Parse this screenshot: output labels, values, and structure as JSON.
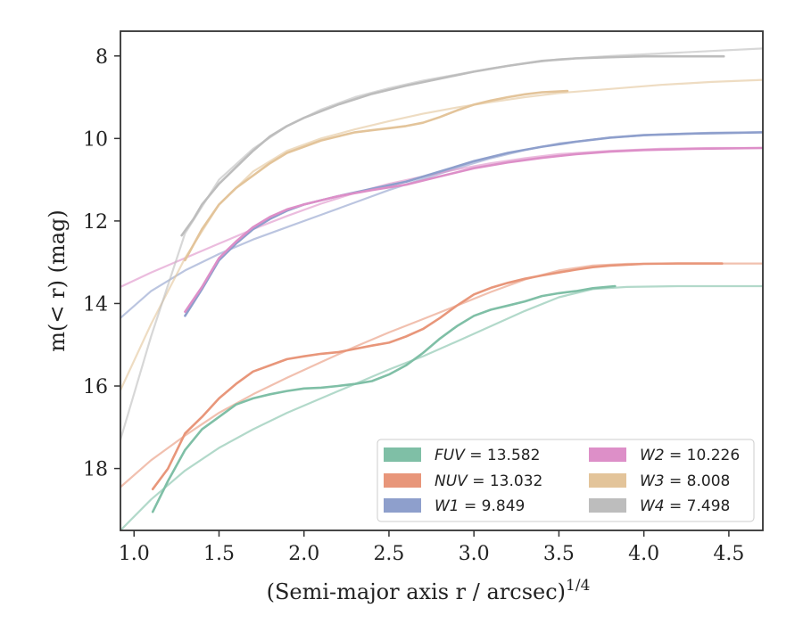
{
  "chart_data": {
    "type": "line",
    "xlabel": "(Semi-major axis r / arcsec)",
    "xlabel_sup": "1/4",
    "ylabel": "m(< r) (mag)",
    "xlim": [
      0.92,
      4.7
    ],
    "ylim": [
      19.5,
      7.4
    ],
    "y_inverted": true,
    "grid": false,
    "legend_placement": "lower-right",
    "x_ticks": [
      1.0,
      1.5,
      2.0,
      2.5,
      3.0,
      3.5,
      4.0,
      4.5
    ],
    "x_tick_labels": [
      "1.0",
      "1.5",
      "2.0",
      "2.5",
      "3.0",
      "3.5",
      "4.0",
      "4.5"
    ],
    "y_ticks": [
      8,
      10,
      12,
      14,
      16,
      18
    ],
    "y_tick_labels": [
      "8",
      "10",
      "12",
      "14",
      "16",
      "18"
    ],
    "series": [
      {
        "name": "FUV",
        "legend_label": "FUV = 13.582",
        "color": "#7fbfa6",
        "curve": [
          [
            1.11,
            19.05
          ],
          [
            1.2,
            18.3
          ],
          [
            1.3,
            17.55
          ],
          [
            1.4,
            17.05
          ],
          [
            1.5,
            16.75
          ],
          [
            1.6,
            16.45
          ],
          [
            1.7,
            16.3
          ],
          [
            1.8,
            16.2
          ],
          [
            1.9,
            16.12
          ],
          [
            2.0,
            16.06
          ],
          [
            2.1,
            16.04
          ],
          [
            2.2,
            16.0
          ],
          [
            2.3,
            15.95
          ],
          [
            2.4,
            15.88
          ],
          [
            2.5,
            15.72
          ],
          [
            2.6,
            15.5
          ],
          [
            2.7,
            15.2
          ],
          [
            2.8,
            14.85
          ],
          [
            2.9,
            14.55
          ],
          [
            3.0,
            14.3
          ],
          [
            3.1,
            14.15
          ],
          [
            3.2,
            14.05
          ],
          [
            3.3,
            13.95
          ],
          [
            3.4,
            13.82
          ],
          [
            3.5,
            13.75
          ],
          [
            3.6,
            13.7
          ],
          [
            3.7,
            13.63
          ],
          [
            3.83,
            13.58
          ]
        ],
        "fit": [
          [
            0.92,
            19.5
          ],
          [
            1.1,
            18.75
          ],
          [
            1.3,
            18.05
          ],
          [
            1.5,
            17.5
          ],
          [
            1.7,
            17.05
          ],
          [
            1.9,
            16.65
          ],
          [
            2.1,
            16.3
          ],
          [
            2.3,
            15.95
          ],
          [
            2.5,
            15.6
          ],
          [
            2.7,
            15.28
          ],
          [
            2.9,
            14.92
          ],
          [
            3.1,
            14.55
          ],
          [
            3.3,
            14.18
          ],
          [
            3.5,
            13.85
          ],
          [
            3.7,
            13.65
          ],
          [
            3.9,
            13.6
          ],
          [
            4.2,
            13.58
          ],
          [
            4.7,
            13.58
          ]
        ]
      },
      {
        "name": "NUV",
        "legend_label": "NUV = 13.032",
        "color": "#e8967a",
        "curve": [
          [
            1.11,
            18.5
          ],
          [
            1.2,
            18.0
          ],
          [
            1.3,
            17.15
          ],
          [
            1.4,
            16.75
          ],
          [
            1.5,
            16.3
          ],
          [
            1.6,
            15.95
          ],
          [
            1.7,
            15.65
          ],
          [
            1.8,
            15.5
          ],
          [
            1.9,
            15.35
          ],
          [
            2.0,
            15.28
          ],
          [
            2.1,
            15.22
          ],
          [
            2.2,
            15.18
          ],
          [
            2.3,
            15.1
          ],
          [
            2.4,
            15.02
          ],
          [
            2.5,
            14.95
          ],
          [
            2.6,
            14.8
          ],
          [
            2.7,
            14.62
          ],
          [
            2.8,
            14.35
          ],
          [
            2.9,
            14.05
          ],
          [
            3.0,
            13.78
          ],
          [
            3.1,
            13.62
          ],
          [
            3.2,
            13.5
          ],
          [
            3.3,
            13.4
          ],
          [
            3.4,
            13.32
          ],
          [
            3.5,
            13.25
          ],
          [
            3.6,
            13.18
          ],
          [
            3.7,
            13.12
          ],
          [
            3.8,
            13.08
          ],
          [
            3.9,
            13.06
          ],
          [
            4.0,
            13.04
          ],
          [
            4.2,
            13.03
          ],
          [
            4.46,
            13.03
          ]
        ],
        "fit": [
          [
            0.92,
            18.45
          ],
          [
            1.1,
            17.8
          ],
          [
            1.3,
            17.2
          ],
          [
            1.5,
            16.65
          ],
          [
            1.7,
            16.2
          ],
          [
            1.9,
            15.8
          ],
          [
            2.1,
            15.42
          ],
          [
            2.3,
            15.05
          ],
          [
            2.5,
            14.7
          ],
          [
            2.7,
            14.38
          ],
          [
            2.9,
            14.05
          ],
          [
            3.1,
            13.72
          ],
          [
            3.3,
            13.42
          ],
          [
            3.5,
            13.2
          ],
          [
            3.7,
            13.08
          ],
          [
            3.9,
            13.04
          ],
          [
            4.2,
            13.03
          ],
          [
            4.7,
            13.03
          ]
        ]
      },
      {
        "name": "W1",
        "legend_label": "W1 = 9.849",
        "color": "#8e9fcc",
        "curve": [
          [
            1.3,
            14.3
          ],
          [
            1.4,
            13.65
          ],
          [
            1.5,
            12.95
          ],
          [
            1.6,
            12.55
          ],
          [
            1.7,
            12.2
          ],
          [
            1.8,
            11.95
          ],
          [
            1.9,
            11.75
          ],
          [
            2.0,
            11.6
          ],
          [
            2.2,
            11.4
          ],
          [
            2.4,
            11.22
          ],
          [
            2.6,
            11.05
          ],
          [
            2.8,
            10.8
          ],
          [
            3.0,
            10.55
          ],
          [
            3.2,
            10.35
          ],
          [
            3.4,
            10.2
          ],
          [
            3.6,
            10.08
          ],
          [
            3.8,
            9.98
          ],
          [
            4.0,
            9.92
          ],
          [
            4.3,
            9.88
          ],
          [
            4.7,
            9.85
          ]
        ],
        "fit": [
          [
            0.92,
            14.35
          ],
          [
            1.1,
            13.7
          ],
          [
            1.3,
            13.2
          ],
          [
            1.5,
            12.8
          ],
          [
            1.7,
            12.45
          ],
          [
            1.9,
            12.15
          ],
          [
            2.1,
            11.85
          ],
          [
            2.3,
            11.55
          ],
          [
            2.5,
            11.25
          ],
          [
            2.7,
            10.98
          ],
          [
            2.9,
            10.72
          ],
          [
            3.1,
            10.48
          ],
          [
            3.3,
            10.28
          ],
          [
            3.5,
            10.12
          ],
          [
            3.8,
            9.98
          ],
          [
            4.1,
            9.9
          ],
          [
            4.4,
            9.86
          ],
          [
            4.7,
            9.85
          ]
        ]
      },
      {
        "name": "W2",
        "legend_label": "W2 = 10.226",
        "color": "#dd8fc8",
        "curve": [
          [
            1.3,
            14.2
          ],
          [
            1.4,
            13.6
          ],
          [
            1.5,
            12.9
          ],
          [
            1.6,
            12.5
          ],
          [
            1.7,
            12.15
          ],
          [
            1.8,
            11.9
          ],
          [
            1.9,
            11.72
          ],
          [
            2.0,
            11.6
          ],
          [
            2.2,
            11.4
          ],
          [
            2.4,
            11.25
          ],
          [
            2.6,
            11.12
          ],
          [
            2.8,
            10.92
          ],
          [
            3.0,
            10.72
          ],
          [
            3.2,
            10.58
          ],
          [
            3.4,
            10.47
          ],
          [
            3.6,
            10.38
          ],
          [
            3.8,
            10.32
          ],
          [
            4.0,
            10.28
          ],
          [
            4.3,
            10.25
          ],
          [
            4.7,
            10.23
          ]
        ],
        "fit": [
          [
            0.92,
            13.6
          ],
          [
            1.1,
            13.25
          ],
          [
            1.3,
            12.9
          ],
          [
            1.5,
            12.55
          ],
          [
            1.7,
            12.2
          ],
          [
            1.9,
            11.88
          ],
          [
            2.1,
            11.58
          ],
          [
            2.3,
            11.32
          ],
          [
            2.5,
            11.1
          ],
          [
            2.7,
            10.92
          ],
          [
            2.9,
            10.75
          ],
          [
            3.1,
            10.6
          ],
          [
            3.3,
            10.48
          ],
          [
            3.5,
            10.38
          ],
          [
            3.8,
            10.3
          ],
          [
            4.1,
            10.25
          ],
          [
            4.4,
            10.23
          ],
          [
            4.7,
            10.23
          ]
        ]
      },
      {
        "name": "W3",
        "legend_label": "W3 = 8.008",
        "color": "#e3c49a",
        "curve": [
          [
            1.3,
            12.95
          ],
          [
            1.4,
            12.2
          ],
          [
            1.5,
            11.6
          ],
          [
            1.6,
            11.2
          ],
          [
            1.7,
            10.9
          ],
          [
            1.8,
            10.6
          ],
          [
            1.9,
            10.35
          ],
          [
            2.0,
            10.2
          ],
          [
            2.1,
            10.05
          ],
          [
            2.2,
            9.95
          ],
          [
            2.3,
            9.85
          ],
          [
            2.4,
            9.8
          ],
          [
            2.5,
            9.75
          ],
          [
            2.6,
            9.7
          ],
          [
            2.7,
            9.62
          ],
          [
            2.8,
            9.48
          ],
          [
            2.9,
            9.32
          ],
          [
            3.0,
            9.18
          ],
          [
            3.1,
            9.08
          ],
          [
            3.2,
            9.0
          ],
          [
            3.3,
            8.93
          ],
          [
            3.4,
            8.88
          ],
          [
            3.5,
            8.86
          ],
          [
            3.55,
            8.85
          ]
        ],
        "fit": [
          [
            0.92,
            16.1
          ],
          [
            1.1,
            14.5
          ],
          [
            1.3,
            12.9
          ],
          [
            1.5,
            11.6
          ],
          [
            1.7,
            10.8
          ],
          [
            1.9,
            10.3
          ],
          [
            2.1,
            10.0
          ],
          [
            2.3,
            9.78
          ],
          [
            2.5,
            9.58
          ],
          [
            2.7,
            9.4
          ],
          [
            2.9,
            9.25
          ],
          [
            3.1,
            9.12
          ],
          [
            3.3,
            9.0
          ],
          [
            3.5,
            8.9
          ],
          [
            3.8,
            8.8
          ],
          [
            4.1,
            8.7
          ],
          [
            4.4,
            8.63
          ],
          [
            4.7,
            8.58
          ]
        ]
      },
      {
        "name": "W4",
        "legend_label": "W4 = 7.498",
        "color": "#bdbdbd",
        "curve": [
          [
            1.28,
            12.35
          ],
          [
            1.35,
            11.95
          ],
          [
            1.4,
            11.6
          ],
          [
            1.5,
            11.1
          ],
          [
            1.6,
            10.7
          ],
          [
            1.7,
            10.3
          ],
          [
            1.8,
            9.95
          ],
          [
            1.9,
            9.7
          ],
          [
            2.0,
            9.5
          ],
          [
            2.2,
            9.18
          ],
          [
            2.4,
            8.92
          ],
          [
            2.6,
            8.72
          ],
          [
            2.8,
            8.55
          ],
          [
            3.0,
            8.38
          ],
          [
            3.2,
            8.24
          ],
          [
            3.4,
            8.12
          ],
          [
            3.6,
            8.06
          ],
          [
            3.8,
            8.03
          ],
          [
            4.0,
            8.01
          ],
          [
            4.2,
            8.01
          ],
          [
            4.47,
            8.01
          ]
        ],
        "fit": [
          [
            0.92,
            17.3
          ],
          [
            1.1,
            14.8
          ],
          [
            1.3,
            12.3
          ],
          [
            1.5,
            11.0
          ],
          [
            1.7,
            10.25
          ],
          [
            1.9,
            9.7
          ],
          [
            2.1,
            9.3
          ],
          [
            2.3,
            9.0
          ],
          [
            2.5,
            8.78
          ],
          [
            2.7,
            8.6
          ],
          [
            2.9,
            8.45
          ],
          [
            3.1,
            8.3
          ],
          [
            3.3,
            8.18
          ],
          [
            3.5,
            8.08
          ],
          [
            3.8,
            8.0
          ],
          [
            4.1,
            7.94
          ],
          [
            4.4,
            7.88
          ],
          [
            4.7,
            7.82
          ]
        ]
      }
    ]
  }
}
